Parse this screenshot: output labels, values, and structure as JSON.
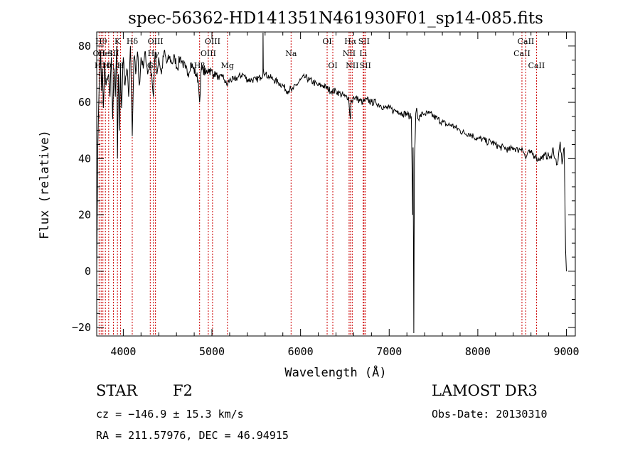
{
  "chart_data": {
    "type": "line",
    "title": "spec-56362-HD141351N461930F01_sp14-085.fits",
    "xlabel": "Wavelength (Å)",
    "ylabel": "Flux (relative)",
    "xlim": [
      3700,
      9100
    ],
    "ylim": [
      -23,
      85
    ],
    "xticks": [
      4000,
      5000,
      6000,
      7000,
      8000,
      9000
    ],
    "xtick_labels": [
      "4000",
      "5000",
      "6000",
      "7000",
      "8000",
      "9000"
    ],
    "yticks": [
      -20,
      0,
      20,
      40,
      60,
      80
    ],
    "ytick_labels": [
      "−20",
      "0",
      "20",
      "40",
      "60",
      "80"
    ],
    "line_color": "#000000",
    "marker_color": "#cc0000",
    "series": [
      {
        "name": "flux",
        "x": [
          3700,
          3712,
          3722,
          3735,
          3745,
          3755,
          3765,
          3775,
          3790,
          3805,
          3820,
          3835,
          3850,
          3865,
          3880,
          3895,
          3910,
          3925,
          3934,
          3945,
          3960,
          3968,
          3980,
          4000,
          4020,
          4040,
          4060,
          4080,
          4101,
          4120,
          4140,
          4160,
          4180,
          4200,
          4225,
          4250,
          4275,
          4300,
          4320,
          4340,
          4360,
          4380,
          4400,
          4430,
          4460,
          4490,
          4520,
          4550,
          4580,
          4610,
          4640,
          4670,
          4700,
          4730,
          4760,
          4790,
          4820,
          4845,
          4861,
          4875,
          4900,
          4930,
          4960,
          4990,
          5020,
          5050,
          5080,
          5110,
          5140,
          5170,
          5200,
          5250,
          5300,
          5350,
          5400,
          5450,
          5500,
          5550,
          5575,
          5577,
          5580,
          5600,
          5650,
          5700,
          5750,
          5800,
          5850,
          5890,
          5900,
          5950,
          6000,
          6050,
          6100,
          6150,
          6200,
          6250,
          6300,
          6350,
          6400,
          6450,
          6500,
          6540,
          6555,
          6563,
          6570,
          6580,
          6600,
          6650,
          6700,
          6750,
          6800,
          6850,
          6900,
          6950,
          7000,
          7050,
          7100,
          7150,
          7200,
          7230,
          7250,
          7265,
          7270,
          7278,
          7285,
          7292,
          7300,
          7310,
          7330,
          7350,
          7380,
          7400,
          7450,
          7500,
          7550,
          7600,
          7650,
          7700,
          7750,
          7800,
          7850,
          7900,
          7950,
          8000,
          8050,
          8100,
          8150,
          8200,
          8250,
          8300,
          8350,
          8400,
          8450,
          8498,
          8520,
          8542,
          8560,
          8600,
          8650,
          8662,
          8700,
          8750,
          8800,
          8830,
          8850,
          8870,
          8900,
          8930,
          8950,
          8960,
          8975,
          8990,
          9000
        ],
        "y": [
          0,
          44,
          58,
          70,
          78,
          64,
          72,
          58,
          74,
          66,
          68,
          70,
          62,
          76,
          54,
          72,
          62,
          80,
          40,
          70,
          50,
          74,
          58,
          76,
          66,
          72,
          62,
          80,
          48,
          76,
          70,
          78,
          66,
          76,
          72,
          78,
          70,
          74,
          70,
          62,
          78,
          70,
          76,
          70,
          78,
          74,
          76,
          74,
          76,
          72,
          76,
          74,
          72,
          70,
          74,
          72,
          70,
          68,
          60,
          70,
          72,
          70,
          72,
          71,
          70,
          70,
          68,
          70,
          68,
          66,
          68,
          68,
          69,
          70,
          68,
          68,
          68,
          69,
          70,
          86,
          72,
          70,
          69,
          68,
          67,
          66,
          64,
          65,
          64,
          66,
          68,
          69,
          68,
          67,
          66,
          66,
          65,
          64,
          64,
          63,
          62,
          62,
          56,
          54,
          61,
          60,
          62,
          61,
          60,
          61,
          60,
          60,
          59,
          58,
          58,
          57,
          57,
          56,
          56,
          55,
          55,
          20,
          44,
          -22,
          40,
          46,
          56,
          58,
          54,
          55,
          56,
          56,
          56,
          55,
          54,
          53,
          52,
          52,
          51,
          50,
          49,
          49,
          48,
          47,
          47,
          46,
          46,
          45,
          44,
          44,
          43,
          44,
          43,
          44,
          42,
          40,
          42,
          42,
          41,
          40,
          40,
          41,
          41,
          40,
          44,
          40,
          38,
          46,
          38,
          40,
          44,
          8,
          0
        ]
      }
    ],
    "line_markers": [
      {
        "wavelength": 3727,
        "label": "OII",
        "row": 2
      },
      {
        "wavelength": 3750,
        "label": "Hθ",
        "row": 1
      },
      {
        "wavelength": 3770,
        "label": "H10",
        "row": 3
      },
      {
        "wavelength": 3798,
        "label": "HeI",
        "row": 2
      },
      {
        "wavelength": 3835,
        "label": "Hη",
        "row": 3
      },
      {
        "wavelength": 3889,
        "label": "SII",
        "row": 2
      },
      {
        "wavelength": 3934,
        "label": "K",
        "row": 1
      },
      {
        "wavelength": 3968,
        "label": "H",
        "row": 3
      },
      {
        "wavelength": 4101,
        "label": "Hδ",
        "row": 1
      },
      {
        "wavelength": 4304,
        "label": "G",
        "row": 3
      },
      {
        "wavelength": 4340,
        "label": "Hγ",
        "row": 2
      },
      {
        "wavelength": 4363,
        "label": "OIII",
        "row": 1
      },
      {
        "wavelength": 4861,
        "label": "Hβ",
        "row": 3
      },
      {
        "wavelength": 4959,
        "label": "OIII",
        "row": 2
      },
      {
        "wavelength": 5007,
        "label": "OIII",
        "row": 1
      },
      {
        "wavelength": 5175,
        "label": "Mg",
        "row": 3
      },
      {
        "wavelength": 5893,
        "label": "Na",
        "row": 2
      },
      {
        "wavelength": 6300,
        "label": "OI",
        "row": 1
      },
      {
        "wavelength": 6364,
        "label": "OI",
        "row": 3
      },
      {
        "wavelength": 6548,
        "label": "NII",
        "row": 2
      },
      {
        "wavelength": 6563,
        "label": "Hα",
        "row": 1
      },
      {
        "wavelength": 6583,
        "label": "NII",
        "row": 3
      },
      {
        "wavelength": 6707,
        "label": "Li",
        "row": 2
      },
      {
        "wavelength": 6716,
        "label": "SII",
        "row": 1
      },
      {
        "wavelength": 6731,
        "label": "SII",
        "row": 3
      },
      {
        "wavelength": 8498,
        "label": "CaII",
        "row": 2
      },
      {
        "wavelength": 8542,
        "label": "CaII",
        "row": 1
      },
      {
        "wavelength": 8662,
        "label": "CaII",
        "row": 3
      }
    ]
  },
  "info": {
    "object_class": "STAR",
    "subclass": "F2",
    "survey": "LAMOST DR3",
    "redshift": "cz = −146.9 ± 15.3 km/s",
    "obs_date": "Obs-Date: 20130310",
    "coords": "RA = 211.57976, DEC =  46.94915"
  }
}
